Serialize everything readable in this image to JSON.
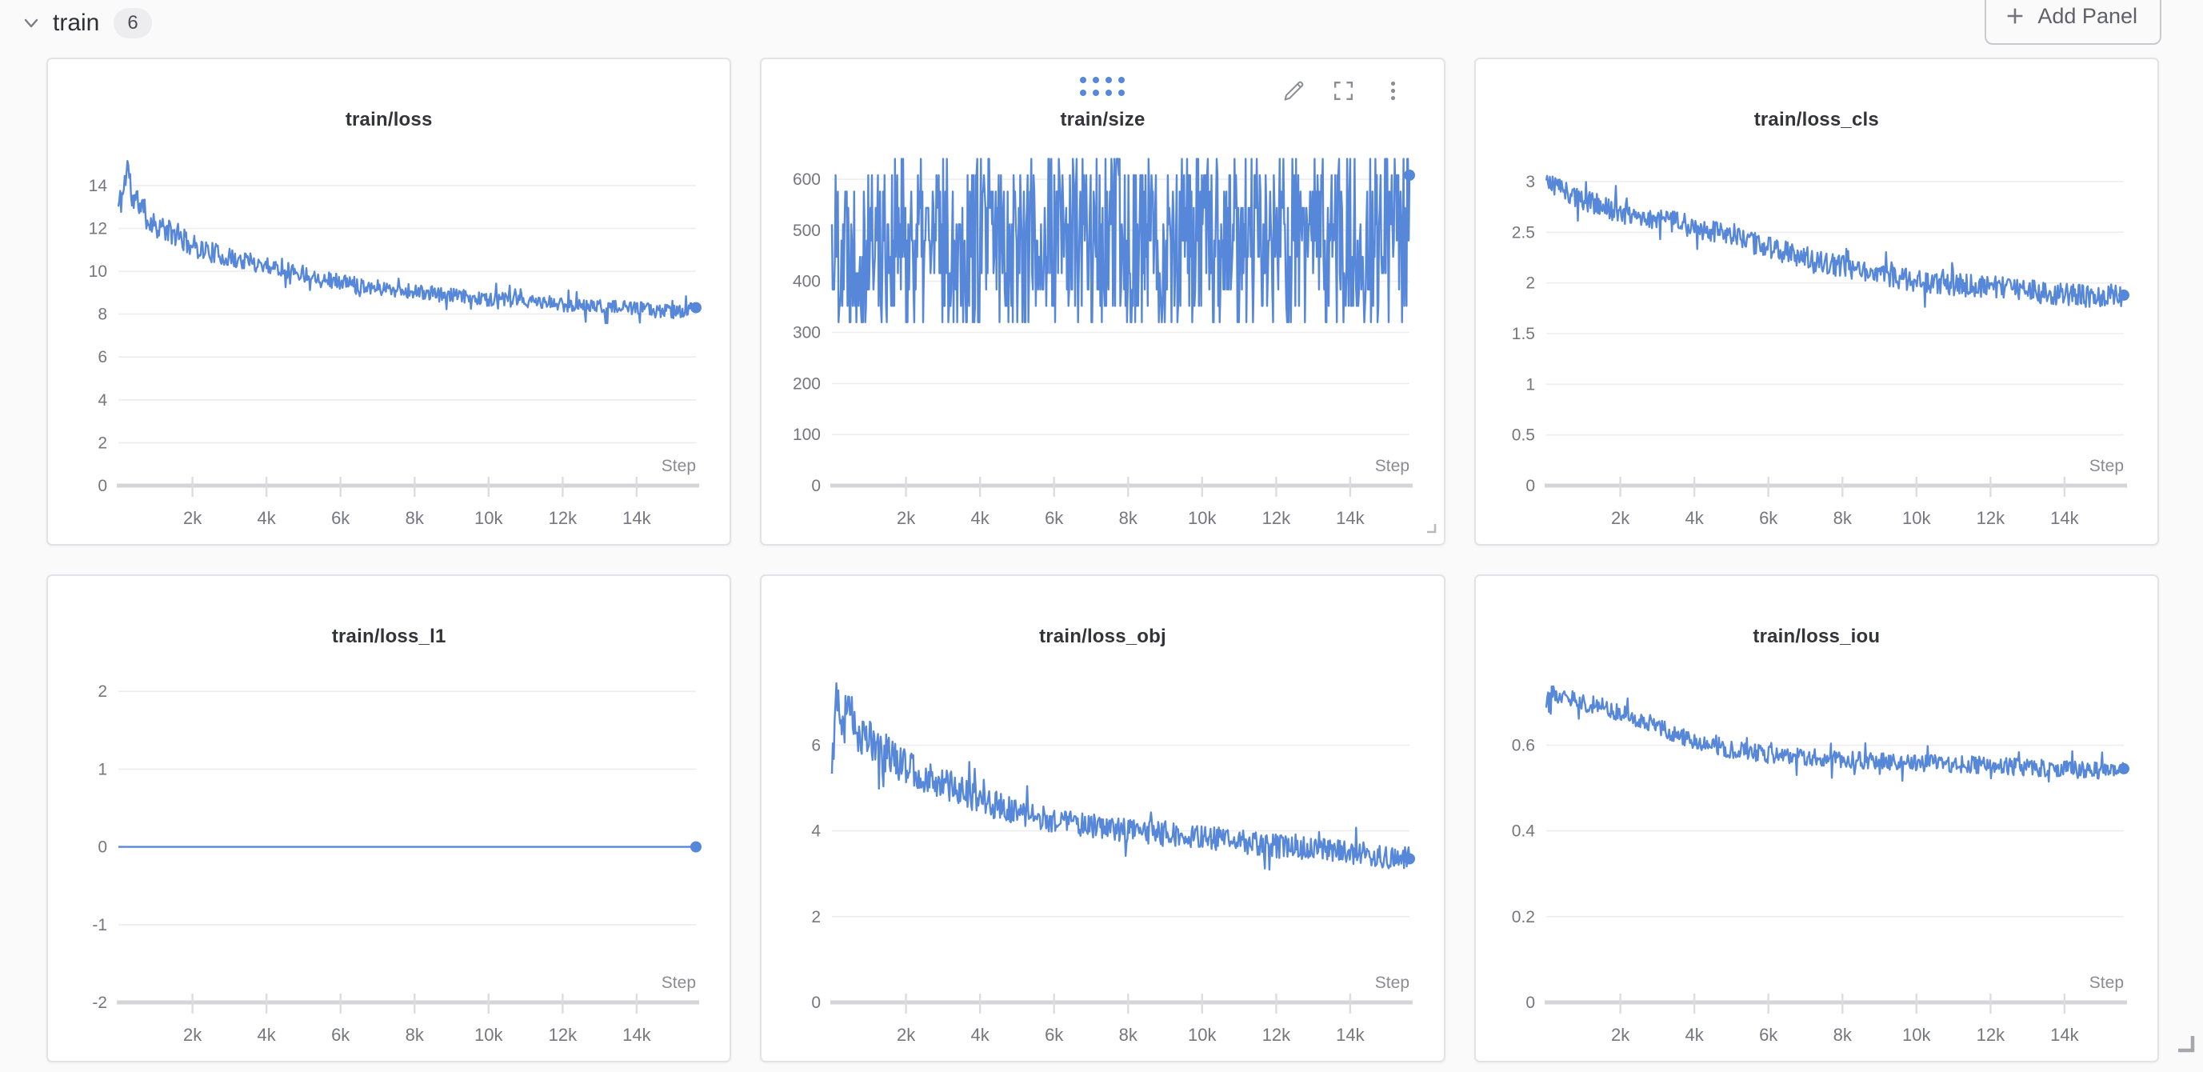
{
  "page": {
    "colors": {
      "background": "#fafafa",
      "accent": "#5787d9",
      "grid": "#ededf0",
      "baseline": "#d4d4d9",
      "tick": "#dcdce1",
      "tick_label": "#76767f",
      "step_label": "#8b8b94",
      "title": "#33333a"
    }
  },
  "header": {
    "section_title": "train",
    "panel_count": "6",
    "add_panel_label": "Add Panel"
  },
  "icons": {
    "collapse": "chevron-down",
    "add": "plus",
    "drag_handle": "dots-grid-4x2",
    "edit": "pencil",
    "fullscreen": "expand-corners",
    "menu": "kebab-vertical",
    "panel_resize": "corner-L",
    "section_resize": "corner-L"
  },
  "chart_data": [
    {
      "type": "line",
      "title": "train/loss",
      "xlabel": "Step",
      "grid": "horizontal",
      "legend": "none",
      "xlim": [
        0,
        15600
      ],
      "ylim": [
        0,
        15.6
      ],
      "yticks": [
        0,
        2,
        4,
        6,
        8,
        10,
        12,
        14
      ],
      "xticks": [
        [
          2000,
          "2k"
        ],
        [
          4000,
          "4k"
        ],
        [
          6000,
          "6k"
        ],
        [
          8000,
          "8k"
        ],
        [
          10000,
          "10k"
        ],
        [
          12000,
          "12k"
        ],
        [
          14000,
          "14k"
        ]
      ],
      "seed": 11,
      "series": {
        "name": "train/loss",
        "kind": "anchors",
        "points": 640,
        "noise": 0.33,
        "early_boost": true,
        "anchors": [
          [
            0,
            13.0
          ],
          [
            120,
            13.6
          ],
          [
            250,
            15.1
          ],
          [
            380,
            13.2
          ],
          [
            550,
            13.3
          ],
          [
            800,
            12.4
          ],
          [
            1200,
            12.0
          ],
          [
            1600,
            11.6
          ],
          [
            2000,
            11.2
          ],
          [
            2500,
            10.9
          ],
          [
            3000,
            10.6
          ],
          [
            4000,
            10.3
          ],
          [
            5000,
            9.9
          ],
          [
            6000,
            9.5
          ],
          [
            7000,
            9.25
          ],
          [
            8000,
            9.05
          ],
          [
            9000,
            8.85
          ],
          [
            10000,
            8.7
          ],
          [
            11000,
            8.6
          ],
          [
            12000,
            8.45
          ],
          [
            13000,
            8.35
          ],
          [
            14000,
            8.25
          ],
          [
            15000,
            8.1
          ],
          [
            15600,
            8.3
          ]
        ]
      }
    },
    {
      "type": "line",
      "title": "train/size",
      "xlabel": "Step",
      "grid": "horizontal",
      "legend": "none",
      "xlim": [
        0,
        15600
      ],
      "ylim": [
        0,
        655
      ],
      "yticks": [
        0,
        100,
        200,
        300,
        400,
        500,
        600
      ],
      "xticks": [
        [
          2000,
          "2k"
        ],
        [
          4000,
          "4k"
        ],
        [
          6000,
          "6k"
        ],
        [
          8000,
          "8k"
        ],
        [
          10000,
          "10k"
        ],
        [
          12000,
          "12k"
        ],
        [
          14000,
          "14k"
        ]
      ],
      "seed": 22,
      "series": {
        "name": "train/size",
        "kind": "quantized",
        "points": 780,
        "min": 320,
        "max": 640,
        "step": 32,
        "last": 608
      }
    },
    {
      "type": "line",
      "title": "train/loss_cls",
      "xlabel": "Step",
      "grid": "horizontal",
      "legend": "none",
      "xlim": [
        0,
        15600
      ],
      "ylim": [
        0,
        3.3
      ],
      "yticks": [
        0,
        0.5,
        1,
        1.5,
        2,
        2.5,
        3
      ],
      "xticks": [
        [
          2000,
          "2k"
        ],
        [
          4000,
          "4k"
        ],
        [
          6000,
          "6k"
        ],
        [
          8000,
          "8k"
        ],
        [
          10000,
          "10k"
        ],
        [
          12000,
          "12k"
        ],
        [
          14000,
          "14k"
        ]
      ],
      "seed": 33,
      "series": {
        "name": "train/loss_cls",
        "kind": "anchors",
        "points": 640,
        "noise": 0.11,
        "early_boost": false,
        "anchors": [
          [
            0,
            3.0
          ],
          [
            300,
            2.95
          ],
          [
            800,
            2.85
          ],
          [
            1500,
            2.75
          ],
          [
            2500,
            2.65
          ],
          [
            3500,
            2.6
          ],
          [
            4500,
            2.5
          ],
          [
            5500,
            2.4
          ],
          [
            6500,
            2.3
          ],
          [
            7500,
            2.2
          ],
          [
            8500,
            2.12
          ],
          [
            9500,
            2.05
          ],
          [
            10500,
            2.0
          ],
          [
            11500,
            1.97
          ],
          [
            12500,
            1.95
          ],
          [
            13500,
            1.9
          ],
          [
            14500,
            1.87
          ],
          [
            15600,
            1.88
          ]
        ]
      }
    },
    {
      "type": "line",
      "title": "train/loss_l1",
      "xlabel": "Step",
      "grid": "horizontal",
      "legend": "none",
      "xlim": [
        0,
        15600
      ],
      "ylim": [
        -2,
        2.3
      ],
      "yticks": [
        -2,
        -1,
        0,
        1,
        2
      ],
      "xticks": [
        [
          2000,
          "2k"
        ],
        [
          4000,
          "4k"
        ],
        [
          6000,
          "6k"
        ],
        [
          8000,
          "8k"
        ],
        [
          10000,
          "10k"
        ],
        [
          12000,
          "12k"
        ],
        [
          14000,
          "14k"
        ]
      ],
      "seed": 44,
      "series": {
        "name": "train/loss_l1",
        "kind": "anchors",
        "points": 80,
        "noise": 0,
        "early_boost": false,
        "anchors": [
          [
            0,
            0
          ],
          [
            15600,
            0
          ]
        ]
      }
    },
    {
      "type": "line",
      "title": "train/loss_obj",
      "xlabel": "Step",
      "grid": "horizontal",
      "legend": "none",
      "xlim": [
        0,
        15600
      ],
      "ylim": [
        0,
        7.8
      ],
      "yticks": [
        0,
        2,
        4,
        6
      ],
      "xticks": [
        [
          2000,
          "2k"
        ],
        [
          4000,
          "4k"
        ],
        [
          6000,
          "6k"
        ],
        [
          8000,
          "8k"
        ],
        [
          10000,
          "10k"
        ],
        [
          12000,
          "12k"
        ],
        [
          14000,
          "14k"
        ]
      ],
      "seed": 55,
      "series": {
        "name": "train/loss_obj",
        "kind": "anchors",
        "points": 640,
        "noise": 0.27,
        "early_boost": true,
        "anchors": [
          [
            0,
            5.4
          ],
          [
            120,
            7.35
          ],
          [
            260,
            6.7
          ],
          [
            420,
            7.0
          ],
          [
            700,
            6.3
          ],
          [
            1100,
            6.1
          ],
          [
            1600,
            5.7
          ],
          [
            2200,
            5.4
          ],
          [
            3000,
            5.1
          ],
          [
            4000,
            4.75
          ],
          [
            5000,
            4.4
          ],
          [
            6000,
            4.25
          ],
          [
            7000,
            4.1
          ],
          [
            8000,
            4.0
          ],
          [
            9000,
            3.95
          ],
          [
            10000,
            3.85
          ],
          [
            11000,
            3.75
          ],
          [
            12000,
            3.65
          ],
          [
            13000,
            3.6
          ],
          [
            14000,
            3.5
          ],
          [
            15000,
            3.4
          ],
          [
            15600,
            3.35
          ]
        ]
      }
    },
    {
      "type": "line",
      "title": "train/loss_iou",
      "xlabel": "Step",
      "grid": "horizontal",
      "legend": "none",
      "xlim": [
        0,
        15600
      ],
      "ylim": [
        0,
        0.78
      ],
      "yticks": [
        0,
        0.2,
        0.4,
        0.6
      ],
      "xticks": [
        [
          2000,
          "2k"
        ],
        [
          4000,
          "4k"
        ],
        [
          6000,
          "6k"
        ],
        [
          8000,
          "8k"
        ],
        [
          10000,
          "10k"
        ],
        [
          12000,
          "12k"
        ],
        [
          14000,
          "14k"
        ]
      ],
      "seed": 66,
      "series": {
        "name": "train/loss_iou",
        "kind": "anchors",
        "points": 640,
        "noise": 0.02,
        "early_boost": false,
        "anchors": [
          [
            0,
            0.72
          ],
          [
            500,
            0.715
          ],
          [
            1000,
            0.7
          ],
          [
            1500,
            0.69
          ],
          [
            2000,
            0.675
          ],
          [
            2500,
            0.66
          ],
          [
            3000,
            0.645
          ],
          [
            3500,
            0.625
          ],
          [
            4000,
            0.61
          ],
          [
            4500,
            0.6
          ],
          [
            5000,
            0.59
          ],
          [
            6000,
            0.578
          ],
          [
            7000,
            0.572
          ],
          [
            8000,
            0.568
          ],
          [
            9000,
            0.562
          ],
          [
            10000,
            0.558
          ],
          [
            11000,
            0.556
          ],
          [
            12000,
            0.552
          ],
          [
            13000,
            0.548
          ],
          [
            14000,
            0.545
          ],
          [
            15000,
            0.54
          ],
          [
            15600,
            0.545
          ]
        ]
      }
    }
  ]
}
